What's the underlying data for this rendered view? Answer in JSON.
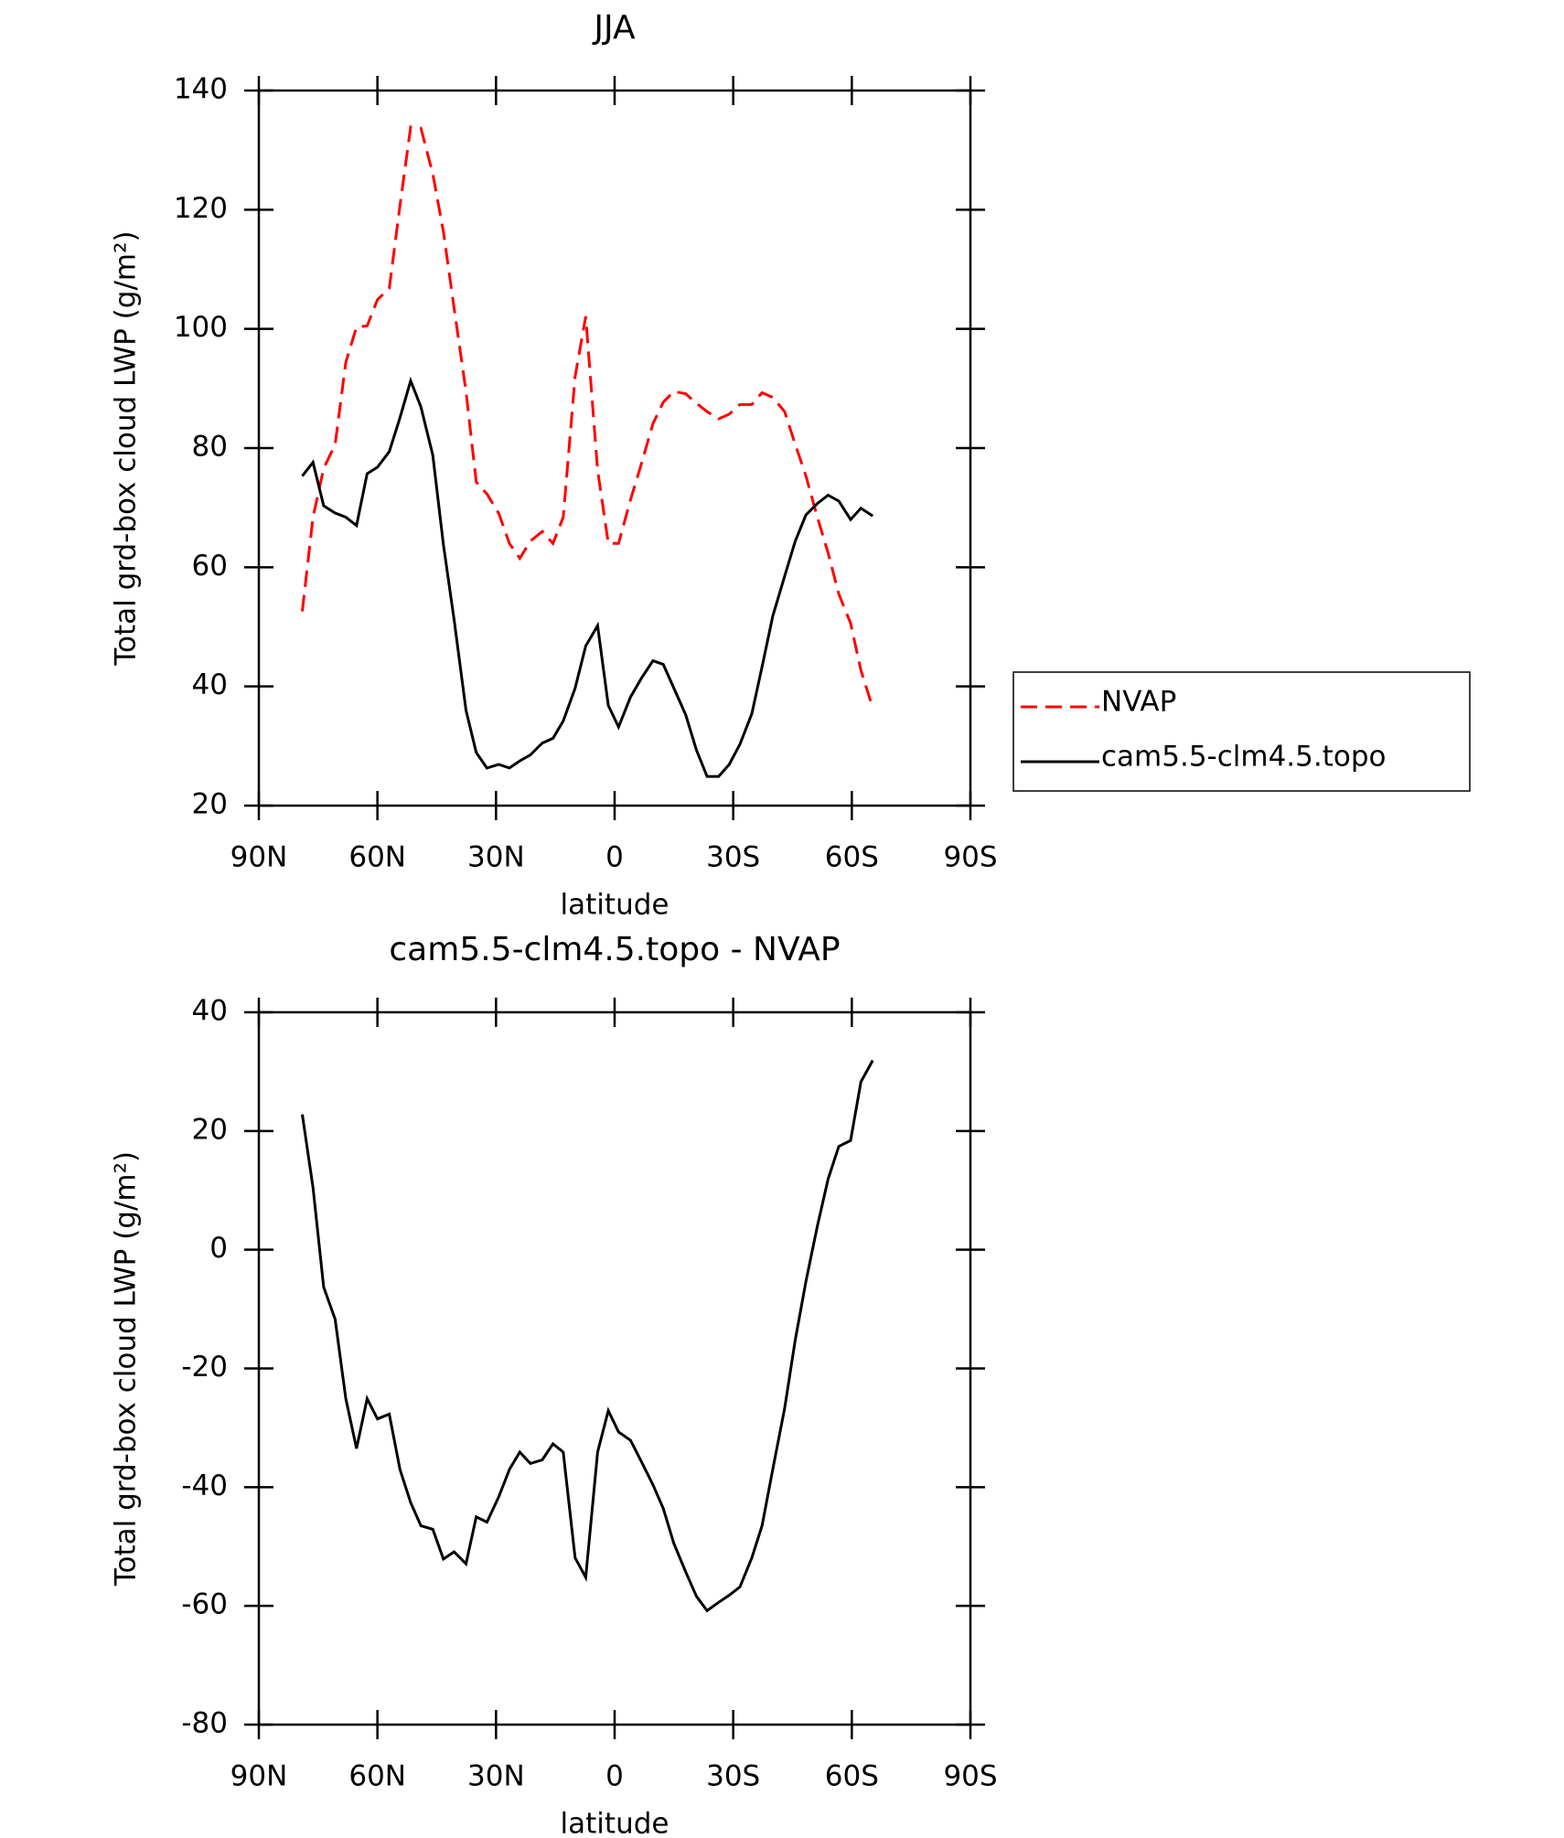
{
  "chart_data": [
    {
      "type": "line",
      "title": "JJA",
      "xlabel": "latitude",
      "ylabel": "Total grd-box cloud LWP (g/m²)",
      "xlim": [
        90,
        -90
      ],
      "xticks": [
        {
          "value": 90,
          "label": "90N"
        },
        {
          "value": 60,
          "label": "60N"
        },
        {
          "value": 30,
          "label": "30N"
        },
        0,
        {
          "value": -30,
          "label": "30S"
        },
        {
          "value": -60,
          "label": "60S"
        },
        {
          "value": -90,
          "label": "90S"
        }
      ],
      "ylim": [
        20,
        140
      ],
      "yticks": [
        20,
        40,
        60,
        80,
        100,
        120,
        140
      ],
      "legend": "right",
      "x": [
        79.0,
        76.3,
        73.6,
        70.7,
        68.0,
        65.3,
        62.6,
        60.0,
        57.0,
        54.3,
        51.6,
        49.0,
        46.0,
        43.3,
        40.6,
        37.6,
        35.0,
        32.3,
        29.3,
        26.6,
        24.0,
        21.3,
        18.3,
        15.6,
        13.0,
        10.0,
        7.3,
        4.3,
        1.6,
        -1.0,
        -4.0,
        -6.7,
        -9.7,
        -12.3,
        -15.0,
        -18.0,
        -20.7,
        -23.4,
        -26.3,
        -29.0,
        -31.7,
        -34.7,
        -37.3,
        -40.0,
        -43.0,
        -45.7,
        -48.4,
        -51.3,
        -54.0,
        -56.7,
        -59.7,
        -62.3,
        -65.3
      ],
      "series": [
        {
          "name": "NVAP",
          "color": "#ff0000",
          "dash": true,
          "values": [
            52.6,
            68.4,
            76.6,
            80.6,
            94.4,
            100.3,
            100.5,
            104.9,
            106.8,
            120.7,
            133.9,
            133.7,
            126.0,
            116.3,
            103.5,
            89.5,
            74.3,
            72.3,
            69.0,
            64.0,
            61.5,
            64.4,
            66.0,
            64.0,
            68.4,
            92.0,
            102.1,
            76.3,
            64.0,
            64.0,
            71.3,
            77.2,
            84.1,
            87.7,
            89.5,
            89.1,
            87.5,
            86.1,
            84.9,
            85.7,
            87.3,
            87.3,
            89.3,
            88.5,
            86.1,
            80.6,
            75.3,
            68.4,
            62.4,
            55.5,
            50.6,
            42.7,
            36.4
          ]
        },
        {
          "name": "cam5.5-clm4.5.topo",
          "color": "#000000",
          "dash": false,
          "values": [
            75.3,
            77.6,
            70.3,
            69.1,
            68.4,
            67.0,
            75.7,
            76.8,
            79.4,
            85.1,
            91.3,
            86.9,
            78.8,
            63.8,
            51.2,
            36.0,
            28.9,
            26.3,
            26.9,
            26.3,
            27.5,
            28.5,
            30.5,
            31.3,
            34.2,
            39.7,
            46.8,
            50.2,
            36.8,
            33.2,
            38.2,
            41.3,
            44.3,
            43.7,
            39.7,
            35.2,
            29.3,
            24.9,
            24.9,
            26.9,
            30.3,
            35.4,
            43.3,
            51.8,
            58.5,
            64.4,
            68.8,
            70.7,
            72.1,
            71.1,
            68.0,
            69.9,
            68.6
          ]
        }
      ]
    },
    {
      "type": "line",
      "title": "cam5.5-clm4.5.topo - NVAP",
      "xlabel": "latitude",
      "ylabel": "Total grd-box cloud LWP (g/m²)",
      "xlim": [
        90,
        -90
      ],
      "xticks": [
        {
          "value": 90,
          "label": "90N"
        },
        {
          "value": 60,
          "label": "60N"
        },
        {
          "value": 30,
          "label": "30N"
        },
        0,
        {
          "value": -30,
          "label": "30S"
        },
        {
          "value": -60,
          "label": "60S"
        },
        {
          "value": -90,
          "label": "90S"
        }
      ],
      "ylim": [
        -80,
        40
      ],
      "yticks": [
        -80,
        -60,
        -40,
        -20,
        0,
        20,
        40
      ],
      "x": [
        79.0,
        76.3,
        73.6,
        70.7,
        68.0,
        65.3,
        62.6,
        60.0,
        57.0,
        54.3,
        51.6,
        49.0,
        46.0,
        43.3,
        40.6,
        37.6,
        35.0,
        32.3,
        29.3,
        26.6,
        24.0,
        21.3,
        18.3,
        15.6,
        13.0,
        10.0,
        7.3,
        4.3,
        1.6,
        -1.0,
        -4.0,
        -6.7,
        -9.7,
        -12.3,
        -15.0,
        -18.0,
        -20.7,
        -23.4,
        -26.3,
        -29.0,
        -31.7,
        -34.7,
        -37.3,
        -40.0,
        -43.0,
        -45.7,
        -48.4,
        -51.3,
        -54.0,
        -56.7,
        -59.7,
        -62.3,
        -65.3
      ],
      "series": [
        {
          "color": "#000000",
          "dash": false,
          "values": [
            22.8,
            10.5,
            -6.3,
            -11.7,
            -25.1,
            -33.5,
            -25.1,
            -28.5,
            -27.7,
            -37.0,
            -42.6,
            -46.5,
            -47.1,
            -52.1,
            -50.9,
            -52.9,
            -45.0,
            -45.9,
            -41.6,
            -37.0,
            -34.1,
            -36.0,
            -35.4,
            -32.7,
            -34.1,
            -51.9,
            -55.2,
            -34.1,
            -27.1,
            -30.7,
            -32.1,
            -35.6,
            -39.6,
            -43.6,
            -49.5,
            -54.3,
            -58.4,
            -60.8,
            -59.4,
            -58.2,
            -56.8,
            -51.9,
            -46.5,
            -37.0,
            -26.7,
            -15.2,
            -5.3,
            4.0,
            11.9,
            17.4,
            18.4,
            28.3,
            31.9
          ]
        }
      ]
    }
  ]
}
